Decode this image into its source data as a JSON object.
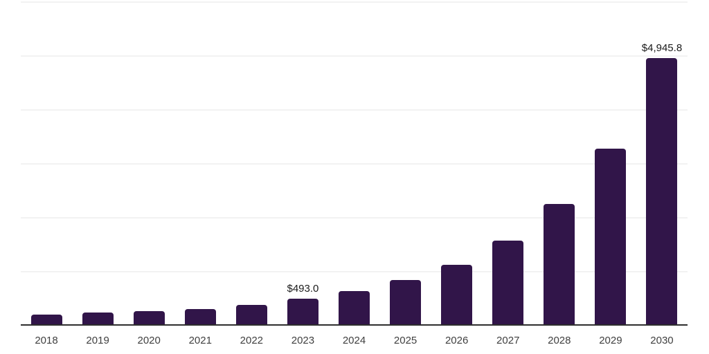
{
  "chart_data": {
    "type": "bar",
    "title": "",
    "xlabel": "",
    "ylabel": "",
    "categories": [
      "2018",
      "2019",
      "2020",
      "2021",
      "2022",
      "2023",
      "2024",
      "2025",
      "2026",
      "2027",
      "2028",
      "2029",
      "2030"
    ],
    "values": [
      195,
      230,
      260,
      295,
      378,
      493.0,
      625,
      838,
      1115,
      1560,
      2240,
      3265,
      4945.8
    ],
    "point_labels": [
      null,
      null,
      null,
      null,
      null,
      "$493.0",
      null,
      null,
      null,
      null,
      null,
      null,
      "$4,945.8"
    ],
    "ylim": [
      0,
      6000
    ],
    "gridline_interval": 1000,
    "grid": "horizontal",
    "y_axis_tick_labels_visible": false,
    "legend": "none"
  },
  "colors": {
    "bar_fill": "#311549",
    "gridline": "#f2f2f2",
    "axis_line": "#2e2e2e",
    "value_label_text": "#1a1a1a",
    "x_tick_text": "#3f3f3f",
    "background": "#ffffff"
  }
}
